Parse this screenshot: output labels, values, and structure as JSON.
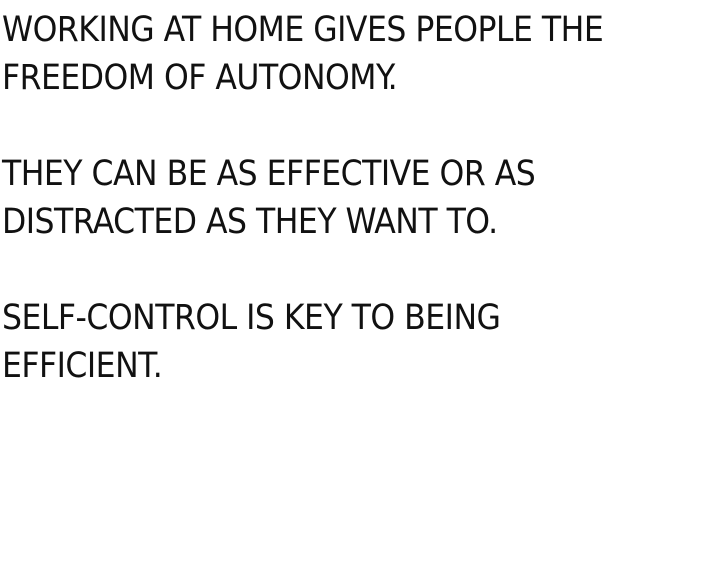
{
  "paragraphs": [
    {
      "lines": [
        "WORKING AT HOME GIVES PEOPLE THE",
        "FREEDOM OF AUTONOMY."
      ]
    },
    {
      "lines": [
        "THEY CAN BE AS EFFECTIVE OR AS",
        "DISTRACTED AS THEY WANT TO."
      ]
    },
    {
      "lines": [
        "SELF-CONTROL IS KEY TO BEING",
        "EFFICIENT."
      ]
    }
  ],
  "colors": {
    "background": "#ffffff",
    "text": "#111111"
  }
}
